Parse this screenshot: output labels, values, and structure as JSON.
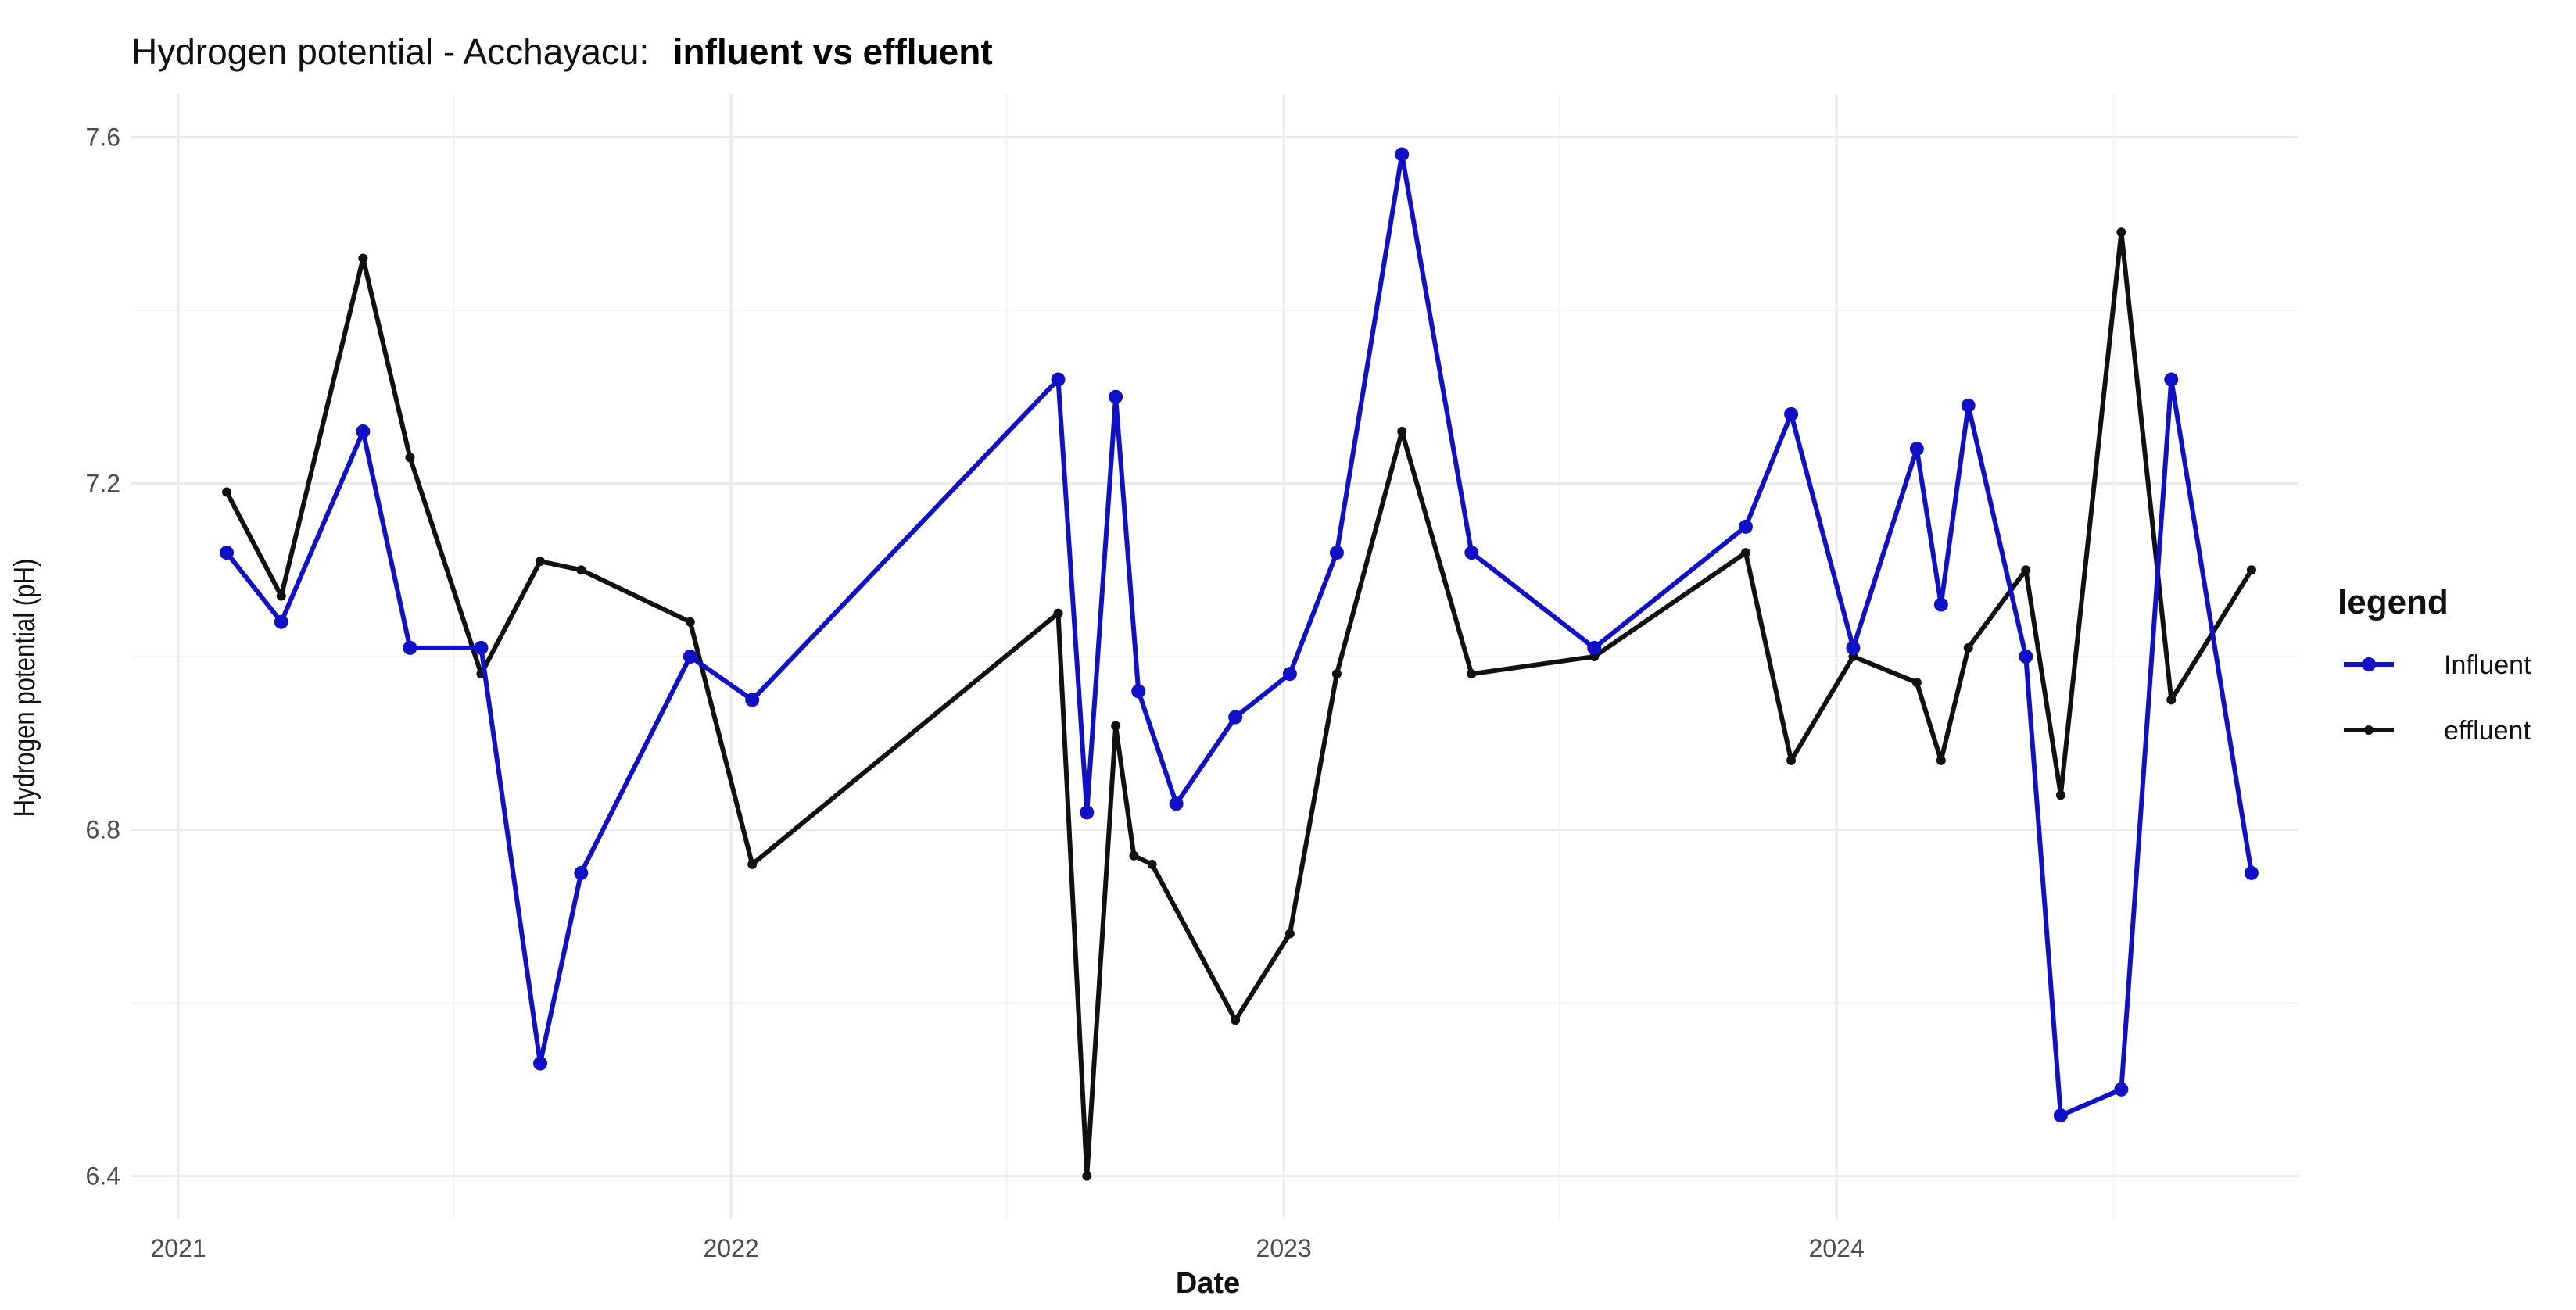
{
  "chart_data": {
    "type": "line",
    "title": "Hydrogen potential - Acchayacu:",
    "title_emphasis": "influent vs effluent",
    "xlabel": "Date",
    "ylabel": "Hydrogen potential (pH)",
    "x_axis_type": "date",
    "xlim": [
      "2020-12-01",
      "2024-11-01"
    ],
    "ylim": [
      6.35,
      7.65
    ],
    "x_ticks": [
      {
        "date": "2021-01-01",
        "label": "2021"
      },
      {
        "date": "2022-01-01",
        "label": "2022"
      },
      {
        "date": "2023-01-01",
        "label": "2023"
      },
      {
        "date": "2024-01-01",
        "label": "2024"
      }
    ],
    "x_minor_ticks": [
      "2021-07-02",
      "2022-07-02",
      "2023-07-02",
      "2024-07-02"
    ],
    "y_ticks": [
      6.4,
      6.8,
      7.2,
      7.6
    ],
    "y_minor_ticks": [
      6.6,
      7.0,
      7.4
    ],
    "grid": true,
    "legend_title": "legend",
    "legend_position": "right",
    "series": [
      {
        "name": "Influent",
        "color": "#1010c8",
        "marker": "circle",
        "points": [
          [
            "2021-02-02",
            7.12
          ],
          [
            "2021-03-10",
            7.04
          ],
          [
            "2021-05-03",
            7.26
          ],
          [
            "2021-06-03",
            7.01
          ],
          [
            "2021-07-20",
            7.01
          ],
          [
            "2021-08-28",
            6.53
          ],
          [
            "2021-09-24",
            6.75
          ],
          [
            "2021-12-05",
            7.0
          ],
          [
            "2022-01-15",
            6.95
          ],
          [
            "2022-08-05",
            7.32
          ],
          [
            "2022-08-24",
            6.82
          ],
          [
            "2022-09-12",
            7.3
          ],
          [
            "2022-09-27",
            6.96
          ],
          [
            "2022-10-22",
            6.83
          ],
          [
            "2022-11-30",
            6.93
          ],
          [
            "2023-01-05",
            6.98
          ],
          [
            "2023-02-05",
            7.12
          ],
          [
            "2023-03-20",
            7.58
          ],
          [
            "2023-05-05",
            7.12
          ],
          [
            "2023-07-25",
            7.01
          ],
          [
            "2023-11-02",
            7.15
          ],
          [
            "2023-12-02",
            7.28
          ],
          [
            "2024-01-12",
            7.01
          ],
          [
            "2024-02-23",
            7.24
          ],
          [
            "2024-03-10",
            7.06
          ],
          [
            "2024-03-28",
            7.29
          ],
          [
            "2024-05-05",
            7.0
          ],
          [
            "2024-05-28",
            6.47
          ],
          [
            "2024-07-07",
            6.5
          ],
          [
            "2024-08-09",
            7.32
          ],
          [
            "2024-10-01",
            6.75
          ]
        ]
      },
      {
        "name": "effluent",
        "color": "#111111",
        "marker": "small-circle",
        "points": [
          [
            "2021-02-02",
            7.19
          ],
          [
            "2021-03-10",
            7.07
          ],
          [
            "2021-05-03",
            7.46
          ],
          [
            "2021-06-03",
            7.23
          ],
          [
            "2021-07-20",
            6.98
          ],
          [
            "2021-08-28",
            7.11
          ],
          [
            "2021-09-24",
            7.1
          ],
          [
            "2021-12-05",
            7.04
          ],
          [
            "2022-01-15",
            6.76
          ],
          [
            "2022-08-05",
            7.05
          ],
          [
            "2022-08-24",
            6.4
          ],
          [
            "2022-09-12",
            6.92
          ],
          [
            "2022-09-24",
            6.77
          ],
          [
            "2022-10-06",
            6.76
          ],
          [
            "2022-11-30",
            6.58
          ],
          [
            "2023-01-05",
            6.68
          ],
          [
            "2023-02-05",
            6.98
          ],
          [
            "2023-03-20",
            7.26
          ],
          [
            "2023-05-05",
            6.98
          ],
          [
            "2023-07-25",
            7.0
          ],
          [
            "2023-11-02",
            7.12
          ],
          [
            "2023-12-02",
            6.88
          ],
          [
            "2024-01-12",
            7.0
          ],
          [
            "2024-02-23",
            6.97
          ],
          [
            "2024-03-10",
            6.88
          ],
          [
            "2024-03-28",
            7.01
          ],
          [
            "2024-05-05",
            7.1
          ],
          [
            "2024-05-28",
            6.84
          ],
          [
            "2024-07-07",
            7.49
          ],
          [
            "2024-08-09",
            6.95
          ],
          [
            "2024-10-01",
            7.1
          ]
        ]
      }
    ]
  }
}
